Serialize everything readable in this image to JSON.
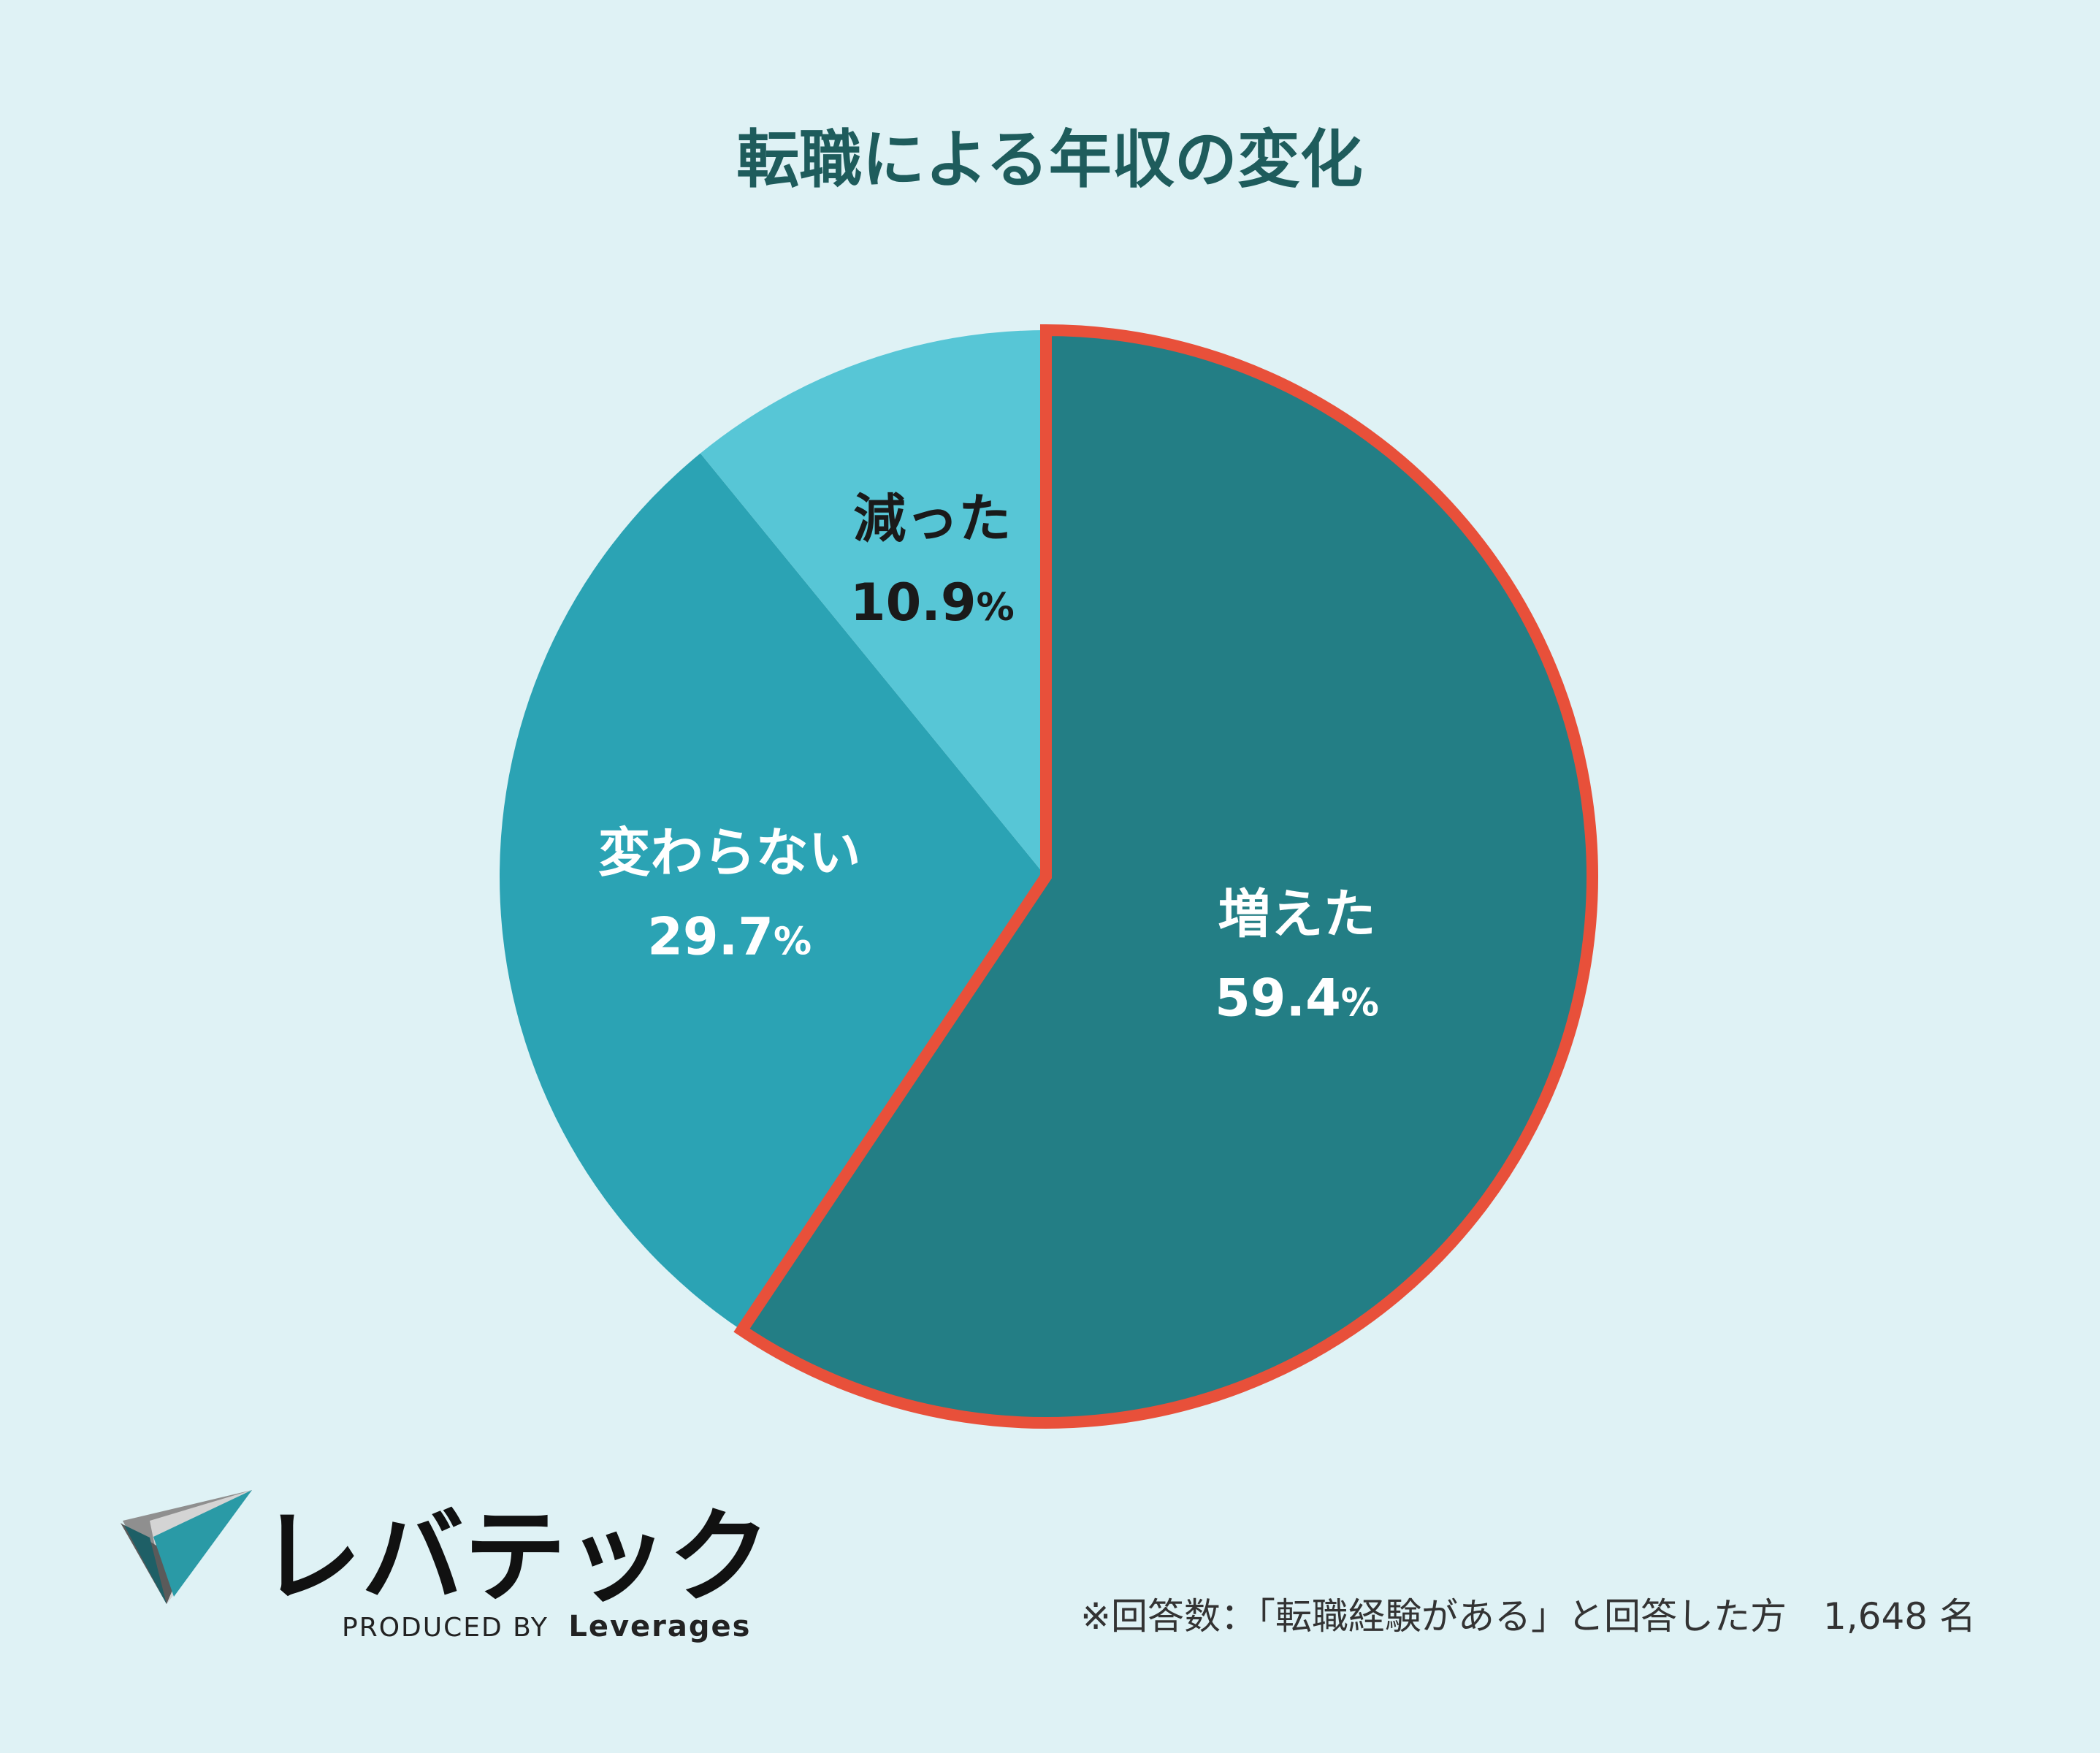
{
  "chart_data": {
    "type": "pie",
    "title": "転職による年収の変化",
    "slices": [
      {
        "label": "増えた",
        "value": 59.4,
        "value_text": "59.4",
        "color": "#237e85",
        "text_color": "#ffffff",
        "highlight": true
      },
      {
        "label": "変わらない",
        "value": 29.7,
        "value_text": "29.7",
        "color": "#2ba3b4",
        "text_color": "#ffffff",
        "highlight": false
      },
      {
        "label": "減った",
        "value": 10.9,
        "value_text": "10.9",
        "color": "#57c6d6",
        "text_color": "#1a1a1a",
        "highlight": false
      }
    ],
    "unit": "%",
    "highlight_color": "#e8503a",
    "start": "12 o'clock, clockwise"
  },
  "footnote": "※回答数：「転職経験がある」と回答した方　1,648 名",
  "brand": {
    "name": "レバテック",
    "produced_by": "PRODUCED BY",
    "company": "Leverages"
  },
  "colors": {
    "background": "#dff2f5",
    "title": "#1e5c5c"
  }
}
